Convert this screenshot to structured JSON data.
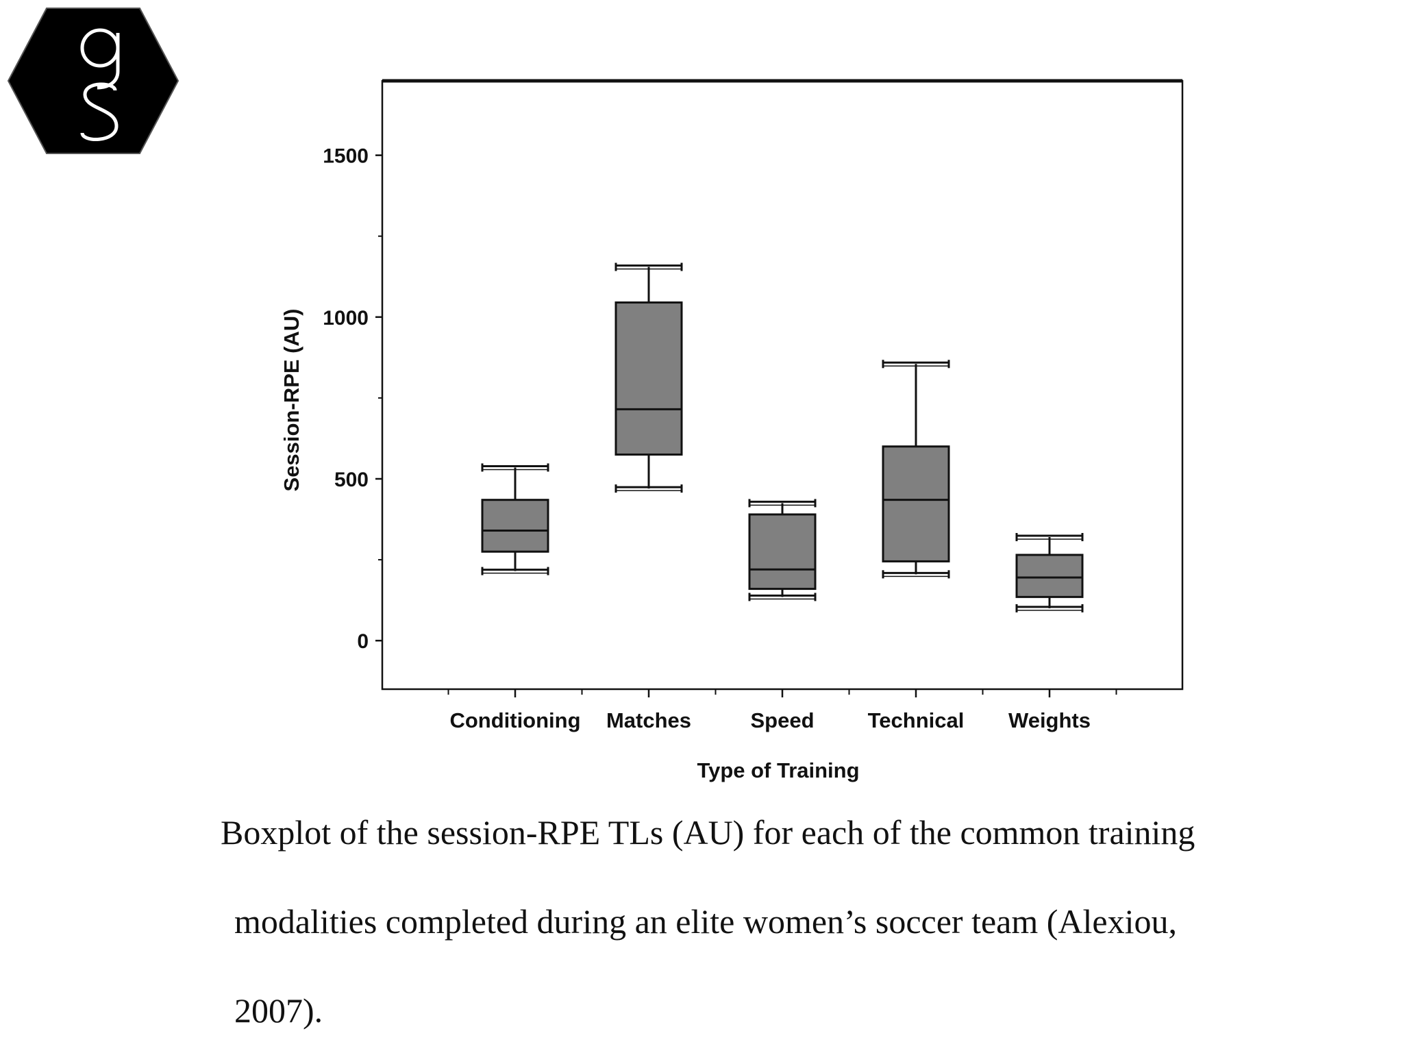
{
  "logo": {
    "icon": "gs-hexagon-logo",
    "letters": "gS"
  },
  "chart_data": {
    "type": "boxplot",
    "xlabel": "Type of Training",
    "ylabel": "Session-RPE (AU)",
    "ylim": [
      -150,
      1730
    ],
    "yticks": [
      0,
      500,
      1000,
      1500
    ],
    "categories": [
      "Conditioning",
      "Matches",
      "Speed",
      "Technical",
      "Weights"
    ],
    "boxes": [
      {
        "category": "Conditioning",
        "min": 215,
        "q1": 275,
        "median": 340,
        "q3": 435,
        "max": 535
      },
      {
        "category": "Matches",
        "min": 470,
        "q1": 575,
        "median": 715,
        "q3": 1045,
        "max": 1155
      },
      {
        "category": "Speed",
        "min": 135,
        "q1": 160,
        "median": 220,
        "q3": 390,
        "max": 425
      },
      {
        "category": "Technical",
        "min": 205,
        "q1": 245,
        "median": 435,
        "q3": 600,
        "max": 855
      },
      {
        "category": "Weights",
        "min": 100,
        "q1": 135,
        "median": 195,
        "q3": 265,
        "max": 320
      }
    ],
    "box_color": "#808080",
    "grid": false
  },
  "caption": {
    "line1": "Boxplot of the session-RPE TLs (AU) for each of the common training",
    "line2": "modalities completed during an elite women’s soccer team (Alexiou,",
    "line3": "2007)."
  }
}
